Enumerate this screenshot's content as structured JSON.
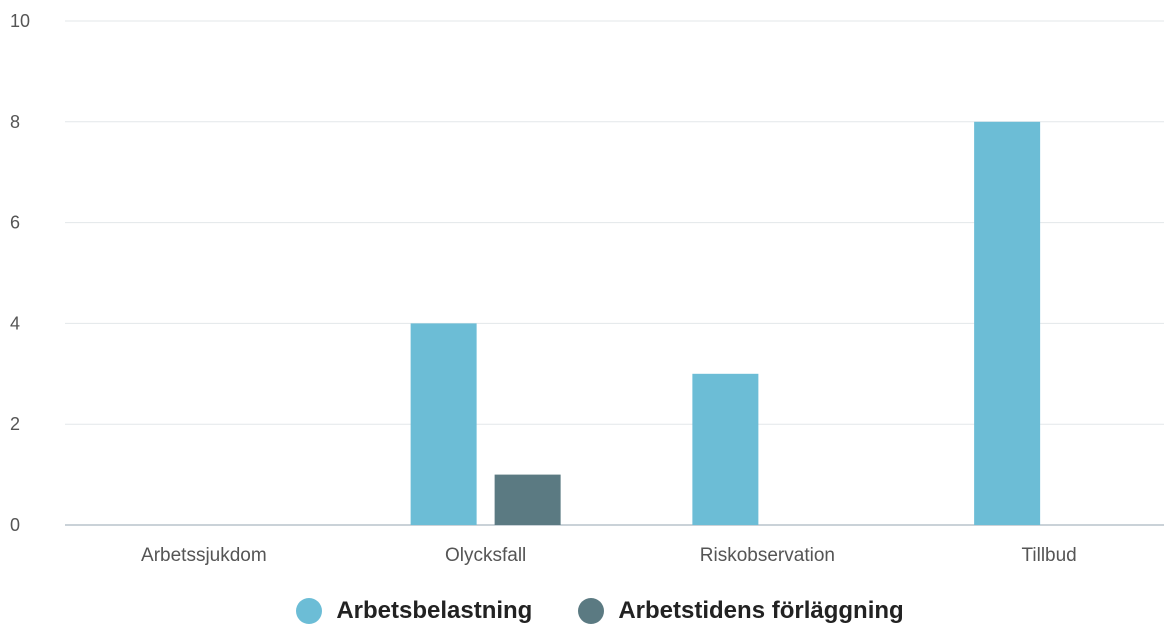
{
  "chart_data": {
    "type": "bar",
    "categories": [
      "Arbetssjukdom",
      "Olycksfall",
      "Riskobservation",
      "Tillbud"
    ],
    "series": [
      {
        "name": "Arbetsbelastning",
        "values": [
          0,
          4,
          3,
          8
        ],
        "color": "#6cbdd6"
      },
      {
        "name": "Arbetstidens förläggning",
        "values": [
          0,
          1,
          0,
          0
        ],
        "color": "#5b7a82"
      }
    ],
    "ylim": [
      0,
      10
    ],
    "yticks": [
      "0",
      "2",
      "4",
      "6",
      "8",
      "10"
    ],
    "grid": true,
    "legend_position": "bottom-center"
  }
}
